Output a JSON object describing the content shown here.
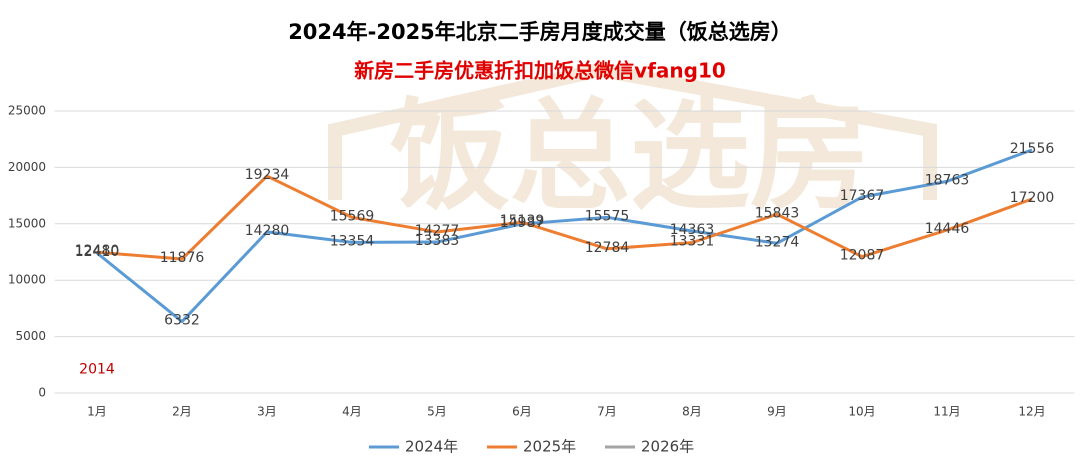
{
  "chart_data": {
    "type": "line",
    "title": "2024年-2025年北京二手房月度成交量（饭总选房）",
    "subtitle": "新房二手房优惠折扣加饭总微信vfang10",
    "watermark": "饭总选房",
    "categories": [
      "1月",
      "2月",
      "3月",
      "4月",
      "5月",
      "6月",
      "7月",
      "8月",
      "9月",
      "10月",
      "11月",
      "12月"
    ],
    "series": [
      {
        "name": "2024年",
        "color": "#5b9bd5",
        "label_color": "#404040",
        "values": [
          12410,
          6332,
          14280,
          13354,
          13383,
          14987,
          15575,
          14363,
          13274,
          17367,
          18763,
          21556
        ]
      },
      {
        "name": "2025年",
        "color": "#ed7d31",
        "label_color": "#404040",
        "values": [
          12480,
          11876,
          19234,
          15569,
          14277,
          15139,
          12784,
          13331,
          15843,
          12087,
          14446,
          17200
        ]
      },
      {
        "name": "2026年",
        "color": "#a5a5a5",
        "label_color": "#c00000",
        "values": [
          2014,
          null,
          null,
          null,
          null,
          null,
          null,
          null,
          null,
          null,
          null,
          null
        ]
      }
    ],
    "ylim": [
      0,
      25000
    ],
    "yticks": [
      0,
      5000,
      10000,
      15000,
      20000,
      25000
    ],
    "grid": true,
    "legend": "bottom"
  }
}
